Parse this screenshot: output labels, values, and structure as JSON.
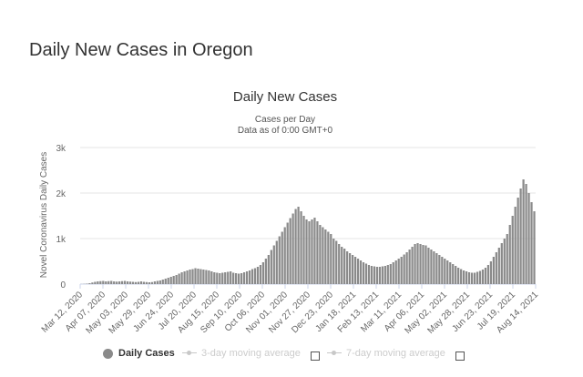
{
  "page": {
    "heading": "Daily New Cases in Oregon"
  },
  "chart_data": {
    "type": "bar",
    "title": "Daily New Cases",
    "subtitle_lines": [
      "Cases per Day",
      "Data as of 0:00 GMT+0"
    ],
    "xlabel": "",
    "ylabel": "Novel Coronavirus Daily Cases",
    "ylim": [
      0,
      3000
    ],
    "y_ticks": [
      0,
      1000,
      2000,
      3000
    ],
    "y_tick_labels": [
      "0",
      "1k",
      "2k",
      "3k"
    ],
    "x_tick_labels": [
      "Mar 12, 2020",
      "Apr 07, 2020",
      "May 03, 2020",
      "May 29, 2020",
      "Jun 24, 2020",
      "Jul 20, 2020",
      "Aug 15, 2020",
      "Sep 10, 2020",
      "Oct 06, 2020",
      "Nov 01, 2020",
      "Nov 27, 2020",
      "Dec 23, 2020",
      "Jan 18, 2021",
      "Feb 13, 2021",
      "Mar 11, 2021",
      "Apr 06, 2021",
      "May 02, 2021",
      "May 28, 2021",
      "Jun 23, 2021",
      "Jul 19, 2021",
      "Aug 14, 2021"
    ],
    "bar_color": "#8a8a8a",
    "grid": true,
    "legend_position": "bottom",
    "series": [
      {
        "name": "Daily Cases",
        "start": "2020-03-12",
        "interval_days": 2,
        "values": [
          2,
          5,
          10,
          20,
          35,
          50,
          60,
          65,
          70,
          60,
          65,
          70,
          60,
          55,
          60,
          65,
          70,
          60,
          55,
          50,
          45,
          50,
          60,
          50,
          45,
          40,
          45,
          60,
          70,
          80,
          100,
          120,
          140,
          160,
          180,
          200,
          230,
          260,
          280,
          300,
          320,
          330,
          350,
          340,
          330,
          320,
          310,
          300,
          280,
          260,
          250,
          240,
          250,
          260,
          270,
          280,
          250,
          240,
          230,
          240,
          260,
          280,
          300,
          330,
          350,
          380,
          420,
          480,
          560,
          640,
          750,
          850,
          950,
          1050,
          1150,
          1250,
          1350,
          1450,
          1550,
          1650,
          1700,
          1600,
          1500,
          1420,
          1380,
          1420,
          1460,
          1380,
          1300,
          1250,
          1200,
          1150,
          1100,
          1000,
          950,
          880,
          820,
          780,
          720,
          680,
          640,
          600,
          560,
          520,
          480,
          450,
          420,
          400,
          390,
          380,
          380,
          390,
          400,
          420,
          440,
          480,
          520,
          560,
          600,
          650,
          700,
          760,
          820,
          880,
          900,
          880,
          860,
          850,
          800,
          760,
          720,
          680,
          640,
          600,
          560,
          520,
          480,
          440,
          400,
          360,
          330,
          300,
          280,
          260,
          250,
          250,
          270,
          290,
          320,
          360,
          420,
          500,
          600,
          700,
          800,
          900,
          1000,
          1100,
          1300,
          1500,
          1700,
          1900,
          2100,
          2300,
          2200,
          2000,
          1800,
          1600
        ]
      }
    ],
    "legend": [
      {
        "label": "Daily Cases",
        "active": true,
        "symbol": "circle",
        "color": "#8a8a8a"
      },
      {
        "label": "3-day moving average",
        "active": false,
        "symbol": "line",
        "color": "#c8c8c8"
      },
      {
        "label": "7-day moving average",
        "active": false,
        "symbol": "line",
        "color": "#c8c8c8"
      }
    ]
  }
}
